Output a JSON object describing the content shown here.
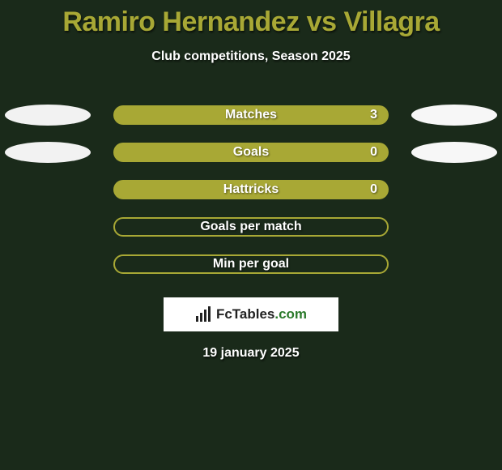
{
  "colors": {
    "background": "#1a2a1a",
    "title_text": "#a8a835",
    "white_text": "#ffffff",
    "ellipse_left": "#f2f2f2",
    "ellipse_right": "#f7f7f7",
    "bar_fill": "#a8a835",
    "bar_outline": "#a8a835",
    "logo_bg": "#ffffff",
    "logo_text": "#222222",
    "logo_dot": "#2b7a2b"
  },
  "title": {
    "full": "Ramiro Hernandez vs Villagra",
    "player_a": "Ramiro Hernandez",
    "vs": " vs ",
    "player_b": "Villagra"
  },
  "subtitle": "Club competitions, Season 2025",
  "stats": [
    {
      "label": "Matches",
      "value": "3",
      "filled": true,
      "left_ellipse": true,
      "right_ellipse": true
    },
    {
      "label": "Goals",
      "value": "0",
      "filled": true,
      "left_ellipse": true,
      "right_ellipse": true
    },
    {
      "label": "Hattricks",
      "value": "0",
      "filled": true,
      "left_ellipse": false,
      "right_ellipse": false
    },
    {
      "label": "Goals per match",
      "value": "",
      "filled": false,
      "left_ellipse": false,
      "right_ellipse": false
    },
    {
      "label": "Min per goal",
      "value": "",
      "filled": false,
      "left_ellipse": false,
      "right_ellipse": false
    }
  ],
  "logo": {
    "text_a": "FcTables",
    "text_b": ".com"
  },
  "date": "19 january 2025"
}
